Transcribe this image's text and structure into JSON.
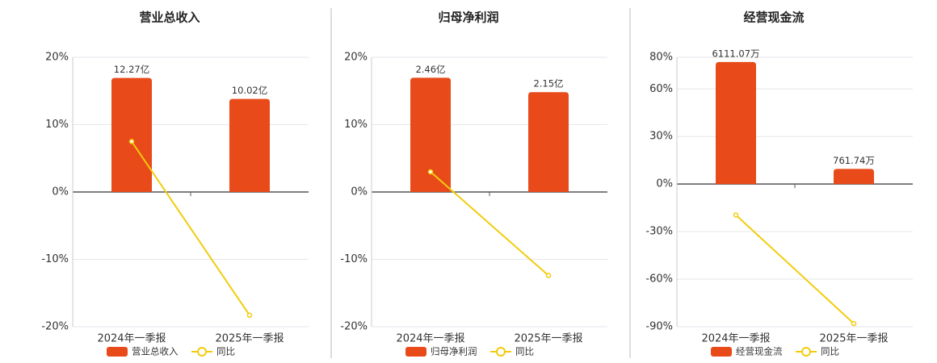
{
  "chart_data": [
    {
      "type": "bar-line",
      "title": "营业总收入",
      "categories": [
        "2024年一季报",
        "2025年一季报"
      ],
      "series": [
        {
          "name": "营业总收入",
          "color": "#e84a1a",
          "values": [
            12.27,
            10.02
          ],
          "value_labels": [
            "12.27亿",
            "10.02亿"
          ],
          "axis": "y2"
        },
        {
          "name": "同比",
          "color": "#f2cc0c",
          "values": [
            7.5,
            -18.3
          ]
        }
      ],
      "ylim": [
        -20,
        20
      ],
      "yticks": [
        {
          "value": 20,
          "label": "20%"
        },
        {
          "value": 10,
          "label": "10%"
        },
        {
          "value": 0,
          "label": "0%"
        },
        {
          "value": -10,
          "label": "-10%"
        },
        {
          "value": -20,
          "label": "-20%"
        }
      ],
      "y2lim": [
        -14.5,
        14.5
      ],
      "grid": true,
      "legend": "bottom"
    },
    {
      "type": "bar-line",
      "title": "归母净利润",
      "categories": [
        "2024年一季报",
        "2025年一季报"
      ],
      "series": [
        {
          "name": "归母净利润",
          "color": "#e84a1a",
          "values": [
            2.46,
            2.15
          ],
          "value_labels": [
            "2.46亿",
            "2.15亿"
          ],
          "axis": "y2"
        },
        {
          "name": "同比",
          "color": "#f2cc0c",
          "values": [
            3.0,
            -12.4
          ]
        }
      ],
      "ylim": [
        -20,
        20
      ],
      "yticks": [
        {
          "value": 20,
          "label": "20%"
        },
        {
          "value": 10,
          "label": "10%"
        },
        {
          "value": 0,
          "label": "0%"
        },
        {
          "value": -10,
          "label": "-10%"
        },
        {
          "value": -20,
          "label": "-20%"
        }
      ],
      "y2lim": [
        -2.9,
        2.9
      ],
      "grid": true,
      "legend": "bottom"
    },
    {
      "type": "bar-line",
      "title": "经营现金流",
      "categories": [
        "2024年一季报",
        "2025年一季报"
      ],
      "series": [
        {
          "name": "经营现金流",
          "color": "#e84a1a",
          "values": [
            6111.07,
            761.74
          ],
          "value_labels": [
            "6111.07万",
            "761.74万"
          ],
          "axis": "y2"
        },
        {
          "name": "同比",
          "color": "#f2cc0c",
          "values": [
            -19.5,
            -88
          ]
        }
      ],
      "ylim": [
        -90,
        80
      ],
      "yticks": [
        {
          "value": 80,
          "label": "80%"
        },
        {
          "value": 60,
          "label": "60%"
        },
        {
          "value": 30,
          "label": "30%"
        },
        {
          "value": 0,
          "label": "0%"
        },
        {
          "value": -30,
          "label": "-30%"
        },
        {
          "value": -60,
          "label": "-60%"
        },
        {
          "value": -90,
          "label": "-90%"
        }
      ],
      "y2lim": [
        -7140,
        6350
      ],
      "grid": true,
      "legend": "bottom"
    }
  ]
}
